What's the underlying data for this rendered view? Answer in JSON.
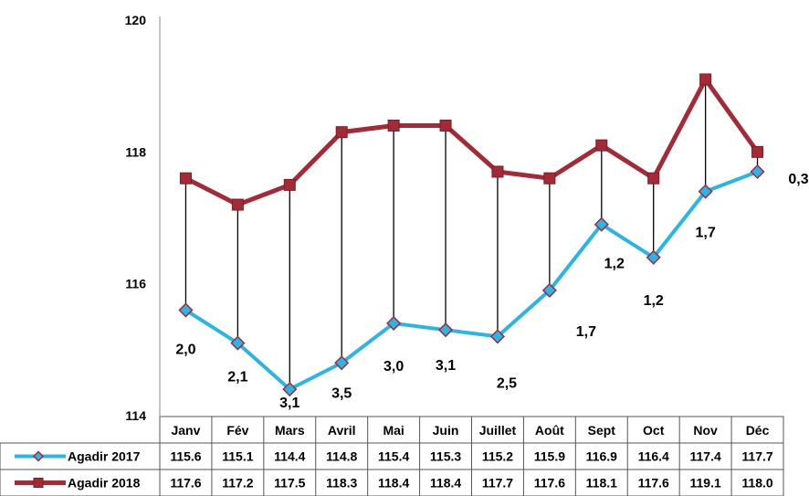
{
  "chart_data": {
    "type": "line",
    "categories": [
      "Janv",
      "Fév",
      "Mars",
      "Avril",
      "Mai",
      "Juin",
      "Juillet",
      "Août",
      "Sept",
      "Oct",
      "Nov",
      "Déc"
    ],
    "series": [
      {
        "name": "Agadir 2017",
        "values": [
          115.6,
          115.1,
          114.4,
          114.8,
          115.4,
          115.3,
          115.2,
          115.9,
          116.9,
          116.4,
          117.4,
          117.7
        ],
        "display": [
          "115.6",
          "115.1",
          "114.4",
          "114.8",
          "115.4",
          "115.3",
          "115.2",
          "115.9",
          "116.9",
          "116.4",
          "117.4",
          "117.7"
        ],
        "color": "#29b5e8",
        "marker": "diamond"
      },
      {
        "name": "Agadir 2018",
        "values": [
          117.6,
          117.2,
          117.5,
          118.3,
          118.4,
          118.4,
          117.7,
          117.6,
          118.1,
          117.6,
          119.1,
          118.0
        ],
        "display": [
          "117.6",
          "117.2",
          "117.5",
          "118.3",
          "118.4",
          "118.4",
          "117.7",
          "117.6",
          "118.1",
          "117.6",
          "119.1",
          "118.0"
        ],
        "color": "#a52a38",
        "marker": "square"
      }
    ],
    "annotations": [
      "2,0",
      "2,1",
      "3,1",
      "3,5",
      "3,0",
      "3,1",
      "2,5",
      "1,7",
      "1,2",
      "1,2",
      "1,7",
      "0,3"
    ],
    "yticks": [
      "114",
      "116",
      "118",
      "120"
    ],
    "ylim": [
      114,
      120
    ],
    "grid": false,
    "drop_lines": true,
    "data_table": true
  }
}
